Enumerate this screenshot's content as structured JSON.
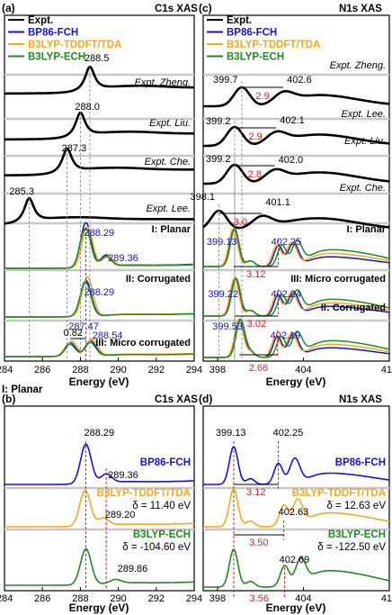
{
  "chart_data": [
    {
      "panel": "(a)",
      "title": "C1s XAS",
      "type": "line",
      "xlabel": "Energy (eV)",
      "xlim": [
        284,
        294
      ],
      "xticks": [
        "284",
        "286",
        "288",
        "290",
        "292",
        "294"
      ],
      "legend": [
        {
          "name": "Expt.",
          "color": "#000000"
        },
        {
          "name": "BP86-FCH",
          "color": "#1414d8"
        },
        {
          "name": "B3LYP-TDDFT/TDA",
          "color": "#f5a81c"
        },
        {
          "name": "B3LYP-ECH",
          "color": "#1e8c1e"
        }
      ],
      "expt": [
        {
          "label": "Expt. Zheng.",
          "peak": "288.5",
          "x": 288.5
        },
        {
          "label": "Expt. Liu.",
          "peak": "288.0",
          "x": 288.0
        },
        {
          "label": "Expt. Che.",
          "peak": "287.3",
          "x": 287.3
        },
        {
          "label": "Expt. Lee.",
          "peak": "285.3",
          "x": 285.3
        }
      ],
      "models": [
        {
          "label": "I: Planar",
          "peaks": [
            {
              "text": "288.29",
              "x": 288.29,
              "color": "#1414d8"
            },
            {
              "text": "289.36",
              "x": 289.36,
              "color": "#1414d8"
            }
          ]
        },
        {
          "label": "II: Corrugated",
          "peaks": [
            {
              "text": "288.29",
              "x": 288.29,
              "color": "#1414d8"
            }
          ]
        },
        {
          "label": "III: Micro corrugated",
          "peaks": [
            {
              "text": "287.47",
              "x": 287.47,
              "color": "#1414d8"
            },
            {
              "text": "288.54",
              "x": 288.54,
              "color": "#1414d8"
            }
          ],
          "split": "0.82"
        }
      ]
    },
    {
      "panel": "(c)",
      "title": "N1s XAS",
      "type": "line",
      "xlabel": "Energy (eV)",
      "xlim": [
        397,
        410
      ],
      "xticks": [
        "398",
        "404",
        "410"
      ],
      "legend": [
        {
          "name": "Expt.",
          "color": "#000000"
        },
        {
          "name": "BP86-FCH",
          "color": "#1414d8"
        },
        {
          "name": "B3LYP-TDDFT/TDA",
          "color": "#f5a81c"
        },
        {
          "name": "B3LYP-ECH",
          "color": "#1e8c1e"
        }
      ],
      "expt": [
        {
          "label": "Expt. Zheng.",
          "p1": "399.7",
          "p2": "402.6",
          "gap": "2.9"
        },
        {
          "label": "Expt. Lee.",
          "p1": "399.2",
          "p2": "402.1",
          "gap": "2.9"
        },
        {
          "label": "Expt. Liu.",
          "p1": "399.2",
          "p2": "402.0",
          "gap": "2.8"
        },
        {
          "label": "Expt. Che.",
          "p1": "398.1",
          "p2": "401.1",
          "gap": "3.0"
        }
      ],
      "models": [
        {
          "label": "I: Planar",
          "p1": "399.13",
          "p2": "402.25",
          "gap": "3.12"
        },
        {
          "label": "III: Micro corrugated",
          "p1": "399.22",
          "p2": "402.24",
          "gap": "3.02"
        },
        {
          "label": "II: Corrugated",
          "p1": "399.53",
          "p2": "402.19",
          "gap": "2.66"
        }
      ]
    },
    {
      "panel": "(b)",
      "title": "C1s XAS",
      "subtitle": "I: Planar",
      "type": "line",
      "xlabel": "Energy (eV)",
      "xlim": [
        284,
        294
      ],
      "xticks": [
        "284",
        "286",
        "288",
        "290",
        "292",
        "294"
      ],
      "methods": [
        {
          "name": "BP86-FCH",
          "color": "#1414d8",
          "peaks": [
            "288.29",
            "289.36"
          ],
          "delta": ""
        },
        {
          "name": "B3LYP-TDDFT/TDA",
          "color": "#f5a81c",
          "peaks": [
            "289.20"
          ],
          "delta": "δ = 11.40 eV"
        },
        {
          "name": "B3LYP-ECH",
          "color": "#1e8c1e",
          "peaks": [
            "289.86"
          ],
          "delta": "δ = -104.60 eV"
        }
      ]
    },
    {
      "panel": "(d)",
      "title": "N1s XAS",
      "type": "line",
      "xlabel": "Energy (eV)",
      "xlim": [
        397,
        410
      ],
      "xticks": [
        "398",
        "404",
        "410"
      ],
      "methods": [
        {
          "name": "BP86-FCH",
          "color": "#1414d8",
          "p1": "399.13",
          "p2": "402.25",
          "gap": "3.12",
          "delta": ""
        },
        {
          "name": "B3LYP-TDDFT/TDA",
          "color": "#f5a81c",
          "p2": "402.63",
          "gap": "3.50",
          "delta": "δ = 12.63 eV"
        },
        {
          "name": "B3LYP-ECH",
          "color": "#1e8c1e",
          "p2": "402.69",
          "gap": "3.56",
          "delta": "δ = -122.50 eV"
        }
      ]
    }
  ]
}
